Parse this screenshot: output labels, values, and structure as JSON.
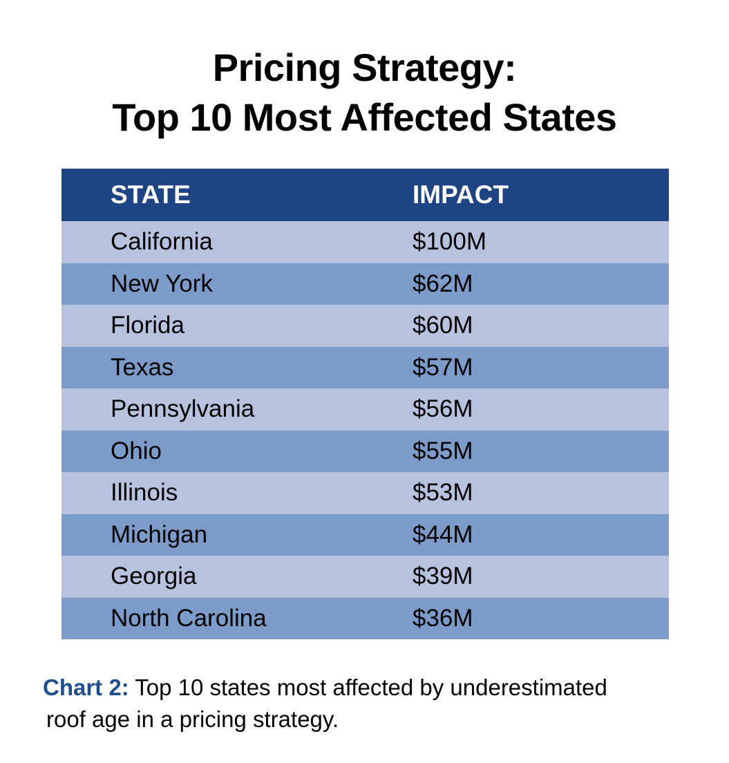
{
  "title": {
    "line1": "Pricing Strategy:",
    "line2": "Top 10 Most Affected States"
  },
  "colors": {
    "header_bg": "#1f4483",
    "row_light": "#b7c3de",
    "row_dark": "#7d9bc9",
    "caption_label": "#1f4e8c"
  },
  "chart_data": {
    "type": "table",
    "title": "Pricing Strategy: Top 10 Most Affected States",
    "columns": [
      "STATE",
      "IMPACT"
    ],
    "rows": [
      {
        "state": "California",
        "impact": "$100M",
        "value_millions": 100
      },
      {
        "state": "New York",
        "impact": "$62M",
        "value_millions": 62
      },
      {
        "state": "Florida",
        "impact": "$60M",
        "value_millions": 60
      },
      {
        "state": "Texas",
        "impact": "$57M",
        "value_millions": 57
      },
      {
        "state": "Pennsylvania",
        "impact": "$56M",
        "value_millions": 56
      },
      {
        "state": "Ohio",
        "impact": "$55M",
        "value_millions": 55
      },
      {
        "state": "Illinois",
        "impact": "$53M",
        "value_millions": 53
      },
      {
        "state": "Michigan",
        "impact": "$44M",
        "value_millions": 44
      },
      {
        "state": "Georgia",
        "impact": "$39M",
        "value_millions": 39
      },
      {
        "state": "North Carolina",
        "impact": "$36M",
        "value_millions": 36
      }
    ]
  },
  "caption": {
    "label": "Chart 2:",
    "text_line1": " Top 10 states most affected by underestimated",
    "text_line2": "roof age in a pricing strategy."
  }
}
